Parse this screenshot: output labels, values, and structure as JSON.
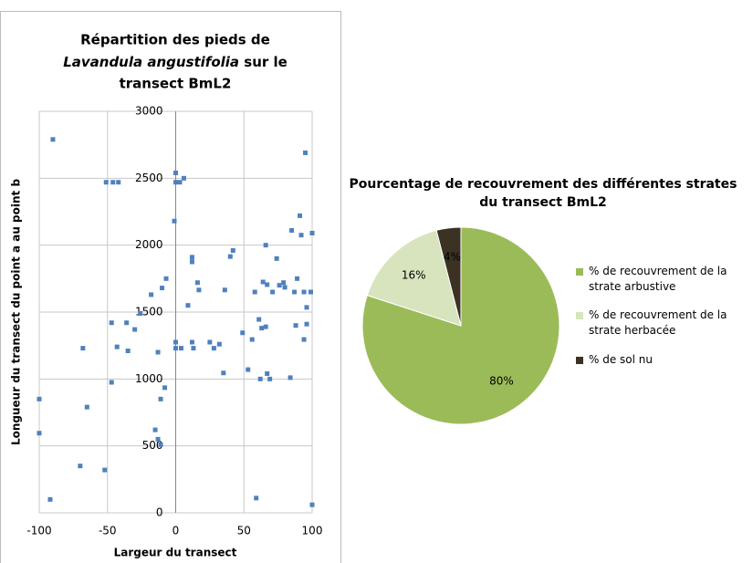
{
  "chart_data": [
    {
      "type": "scatter",
      "title": [
        "Répartition des pieds de",
        "Lavandula angustifolia",
        " sur le",
        "transect BmL2"
      ],
      "x_label": "Largeur du transect",
      "y_label": "Longueur du transect du point a au point b",
      "color": "#4f81bd",
      "grid": true,
      "xlim": [
        -100,
        100
      ],
      "xticks": [
        -100,
        -50,
        0,
        50,
        100
      ],
      "ylim": [
        0,
        3000
      ],
      "yticks": [
        0,
        500,
        1000,
        1500,
        2000,
        2500,
        3000
      ],
      "x": [
        -90,
        -100,
        -100,
        -92,
        -70,
        -52,
        -68,
        -65,
        -51,
        -46,
        -42,
        -47,
        -47,
        -43,
        -36,
        -35,
        -30,
        -26,
        -18,
        -15,
        -13,
        -11,
        -11,
        -8,
        -13,
        -10,
        -7,
        -1,
        0,
        0,
        3,
        6,
        0,
        0,
        4,
        9,
        12,
        12,
        16,
        17,
        12,
        13,
        25,
        28,
        32,
        35,
        36,
        40,
        42,
        49,
        53,
        56,
        58,
        59,
        61,
        62,
        63,
        66,
        66,
        64,
        67,
        67,
        69,
        71,
        74,
        76,
        79,
        80,
        84,
        85,
        87,
        89,
        88,
        91,
        92,
        94,
        94,
        95,
        96,
        96,
        99,
        100,
        100
      ],
      "y": [
        2790,
        850,
        595,
        100,
        350,
        320,
        1230,
        790,
        2470,
        2470,
        2470,
        1420,
        975,
        1240,
        1420,
        1210,
        1370,
        1490,
        1630,
        620,
        550,
        510,
        850,
        935,
        1200,
        1680,
        1750,
        2180,
        2540,
        2470,
        2470,
        2500,
        1275,
        1230,
        1230,
        1550,
        1910,
        1875,
        1720,
        1665,
        1275,
        1230,
        1275,
        1230,
        1260,
        1045,
        1665,
        1915,
        1960,
        1345,
        1070,
        1295,
        1650,
        110,
        1445,
        1000,
        1380,
        1390,
        2000,
        1725,
        1705,
        1040,
        1000,
        1650,
        1900,
        1700,
        1720,
        1685,
        1010,
        2110,
        1650,
        1750,
        1400,
        2220,
        2075,
        1650,
        1295,
        2690,
        1535,
        1410,
        1650,
        2090,
        60
      ]
    },
    {
      "type": "pie",
      "title": "Pourcentage de recouvrement des différentes strates du transect BmL2",
      "categories": [
        "% de recouvrement de la strate arbustive",
        "% de recouvrement de la strate herbacée",
        "% de sol nu"
      ],
      "values": [
        80,
        16,
        4
      ],
      "value_labels": [
        "80%",
        "16%",
        "4%"
      ],
      "colors": [
        "#9bbb59",
        "#d7e4bd",
        "#3b3224"
      ],
      "legend": "right"
    }
  ]
}
